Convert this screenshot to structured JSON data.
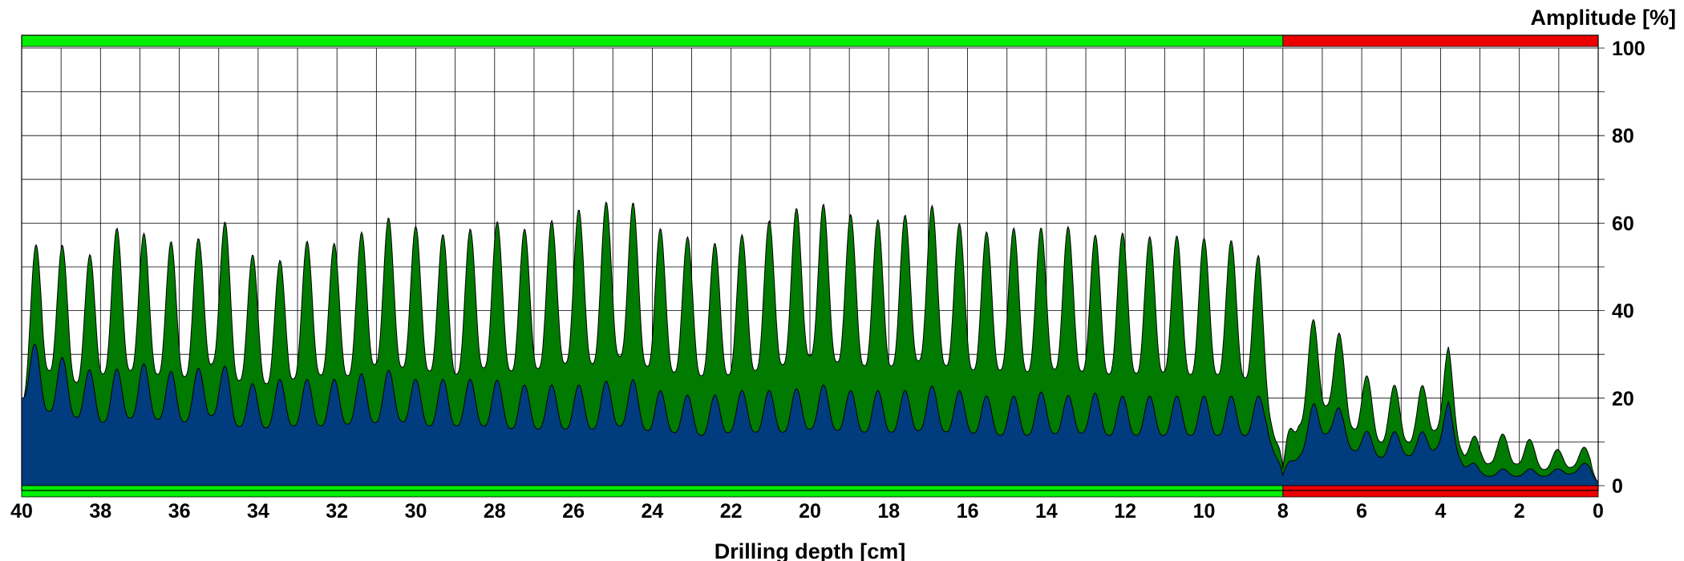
{
  "chart_data": {
    "type": "area",
    "xlabel": "Drilling depth [cm]",
    "ylabel": "Amplitude [%]",
    "xlim": [
      40,
      0
    ],
    "ylim": [
      0,
      100
    ],
    "x_reversed": true,
    "grid": true,
    "xticks": [
      40,
      38,
      36,
      34,
      32,
      30,
      28,
      26,
      24,
      22,
      20,
      18,
      16,
      14,
      12,
      10,
      8,
      6,
      4,
      2,
      0
    ],
    "yticks": [
      0,
      20,
      40,
      60,
      80,
      100
    ],
    "status_bands": [
      {
        "from": 40,
        "to": 8,
        "color": "#00ee00"
      },
      {
        "from": 8,
        "to": 0,
        "color": "#ee0000"
      }
    ],
    "series": [
      {
        "color": "#007a00",
        "x": [
          40,
          39.5,
          39.0,
          38.4,
          38.0,
          37.5,
          37.0,
          36.5,
          36.0,
          35.5,
          35.0,
          34.6,
          34.0,
          33.5,
          33.0,
          32.5,
          32.0,
          31.5,
          31.0,
          30.5,
          30.0,
          29.5,
          29.0,
          28.5,
          28.0,
          27.5,
          27.0,
          26.5,
          26.0,
          25.5,
          25.0,
          24.5,
          24.0,
          23.5,
          23.0,
          22.5,
          22.0,
          21.5,
          21.0,
          20.5,
          20.0,
          19.5,
          19.0,
          18.5,
          18.0,
          17.5,
          17.0,
          16.5,
          16.0,
          15.5,
          15.0,
          14.5,
          14.0,
          13.5,
          13.0,
          12.5,
          12.0,
          11.5,
          11.0,
          10.5,
          10.0,
          9.5,
          9.0,
          8.6,
          8.4,
          8.0,
          7.6,
          7.2,
          6.8,
          6.5,
          6.0,
          5.5,
          5.0,
          4.6,
          4.2,
          3.8,
          3.4,
          3.0,
          2.6,
          2.2,
          1.8,
          1.4,
          1.0,
          0.6,
          0.2,
          0
        ],
        "y": [
          30,
          44,
          40,
          37,
          41,
          43,
          42,
          41,
          40,
          41,
          47,
          39,
          38,
          37,
          40,
          41,
          40,
          41,
          45,
          44,
          43,
          42,
          41,
          43,
          44,
          42,
          43,
          44,
          46,
          45,
          48,
          47,
          43,
          42,
          41,
          40,
          41,
          42,
          44,
          45,
          48,
          46,
          45,
          44,
          44,
          45,
          47,
          44,
          43,
          42,
          43,
          42,
          43,
          43,
          42,
          41,
          42,
          41,
          42,
          41,
          41,
          41,
          40,
          38,
          30,
          3,
          22,
          28,
          30,
          24,
          19,
          16,
          17,
          15,
          20,
          23,
          11,
          7,
          9,
          8,
          8,
          6,
          6,
          7,
          6,
          1
        ]
      },
      {
        "color": "#003c7e",
        "x": [
          40,
          39.5,
          39.0,
          38.4,
          38.0,
          37.5,
          37.0,
          36.5,
          36.0,
          35.5,
          35.0,
          34.6,
          34.0,
          33.5,
          33.0,
          32.5,
          32.0,
          31.5,
          31.0,
          30.5,
          30.0,
          29.5,
          29.0,
          28.5,
          28.0,
          27.5,
          27.0,
          26.5,
          26.0,
          25.5,
          25.0,
          24.5,
          24.0,
          23.5,
          23.0,
          22.5,
          22.0,
          21.5,
          21.0,
          20.5,
          20.0,
          19.5,
          19.0,
          18.5,
          18.0,
          17.5,
          17.0,
          16.5,
          16.0,
          15.5,
          15.0,
          14.5,
          14.0,
          13.5,
          13.0,
          12.5,
          12.0,
          11.5,
          11.0,
          10.5,
          10.0,
          9.5,
          9.0,
          8.6,
          8.4,
          8.0,
          7.6,
          7.2,
          6.8,
          6.5,
          6.0,
          5.5,
          5.0,
          4.6,
          4.2,
          3.8,
          3.4,
          3.0,
          2.6,
          2.2,
          1.8,
          1.4,
          1.0,
          0.6,
          0.2,
          0
        ],
        "y": [
          28,
          24,
          23,
          21,
          20,
          21,
          22,
          21,
          20,
          21,
          23,
          19,
          18,
          19,
          19,
          19,
          19,
          20,
          20,
          21,
          19,
          19,
          19,
          19,
          19,
          18,
          18,
          18,
          18,
          18,
          19,
          19,
          17,
          17,
          16,
          16,
          17,
          17,
          17,
          17,
          18,
          18,
          17,
          17,
          17,
          17,
          18,
          17,
          17,
          16,
          16,
          16,
          17,
          16,
          17,
          16,
          16,
          16,
          16,
          16,
          16,
          16,
          16,
          16,
          17,
          2,
          9,
          15,
          17,
          13,
          10,
          9,
          10,
          9,
          11,
          15,
          6,
          3,
          3,
          3,
          3,
          3,
          3,
          4,
          4,
          1
        ]
      }
    ]
  }
}
